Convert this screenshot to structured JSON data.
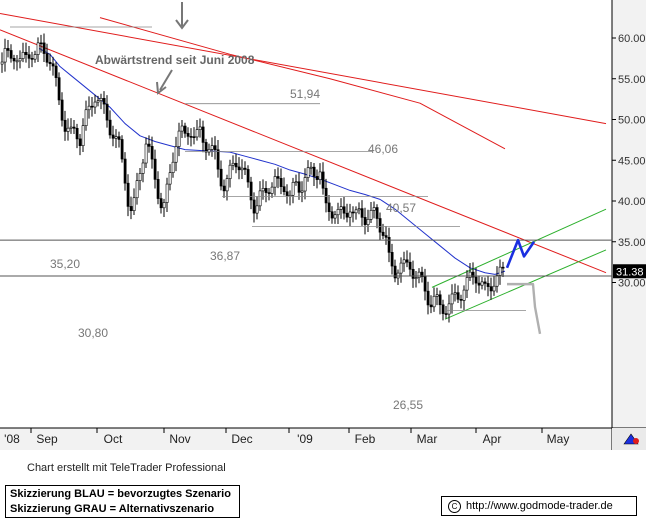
{
  "chart_data": {
    "type": "candlestick",
    "ylim": [
      23.5,
      64.5
    ],
    "y_ticks": [
      "30.00",
      "35.00",
      "40.00",
      "45.00",
      "50.00",
      "55.00",
      "60.00"
    ],
    "x_labels": [
      "'08",
      "Sep",
      "Oct",
      "Nov",
      "Dec",
      "'09",
      "Feb",
      "Mar",
      "Apr",
      "May"
    ],
    "last_price_label": "31.38",
    "last_price": 31.38,
    "annotation_trend": "Abwärtstrend seit Juni 2008",
    "level_labels": [
      {
        "text": "51,94",
        "value": 51.94
      },
      {
        "text": "46,06",
        "value": 46.06
      },
      {
        "text": "40,57",
        "value": 40.57
      },
      {
        "text": "36,87",
        "value": 36.87
      },
      {
        "text": "35,20",
        "value": 35.2
      },
      {
        "text": "30,80",
        "value": 30.8
      },
      {
        "text": "26,55",
        "value": 26.55
      }
    ],
    "price_path": [
      [
        0,
        56.8
      ],
      [
        5,
        58.0
      ],
      [
        10,
        57.5
      ],
      [
        15,
        58.2
      ],
      [
        20,
        57.0
      ],
      [
        25,
        57.6
      ],
      [
        30,
        58.4
      ],
      [
        35,
        57.8
      ],
      [
        40,
        59.0
      ],
      [
        45,
        58.5
      ],
      [
        50,
        57.0
      ],
      [
        55,
        55.0
      ],
      [
        60,
        52.0
      ],
      [
        65,
        49.0
      ],
      [
        70,
        48.0
      ],
      [
        75,
        49.0
      ],
      [
        80,
        47.5
      ],
      [
        85,
        50.0
      ],
      [
        90,
        51.5
      ],
      [
        95,
        53.0
      ],
      [
        100,
        52.0
      ],
      [
        105,
        51.0
      ],
      [
        110,
        49.0
      ],
      [
        115,
        47.5
      ],
      [
        120,
        46.5
      ],
      [
        125,
        43.0
      ],
      [
        128,
        40.0
      ],
      [
        131,
        38.5
      ],
      [
        134,
        39.5
      ],
      [
        138,
        43.0
      ],
      [
        142,
        45.0
      ],
      [
        146,
        47.0
      ],
      [
        150,
        45.5
      ],
      [
        155,
        43.0
      ],
      [
        160,
        40.0
      ],
      [
        163,
        38.5
      ],
      [
        166,
        40.5
      ],
      [
        170,
        43.5
      ],
      [
        175,
        47.0
      ],
      [
        180,
        48.5
      ],
      [
        185,
        48.0
      ],
      [
        190,
        49.0
      ],
      [
        195,
        47.5
      ],
      [
        200,
        48.5
      ],
      [
        205,
        47.0
      ],
      [
        210,
        46.5
      ],
      [
        215,
        45.5
      ],
      [
        220,
        43.0
      ],
      [
        225,
        41.5
      ],
      [
        230,
        43.5
      ],
      [
        235,
        45.0
      ],
      [
        240,
        44.5
      ],
      [
        245,
        43.0
      ],
      [
        250,
        41.0
      ],
      [
        255,
        39.0
      ],
      [
        260,
        40.5
      ],
      [
        265,
        41.0
      ],
      [
        270,
        42.0
      ],
      [
        275,
        42.5
      ],
      [
        280,
        41.5
      ],
      [
        285,
        42.0
      ],
      [
        290,
        40.5
      ],
      [
        295,
        42.0
      ],
      [
        300,
        41.5
      ],
      [
        305,
        43.0
      ],
      [
        310,
        43.5
      ],
      [
        315,
        43.2
      ],
      [
        320,
        44.0
      ],
      [
        325,
        39.0
      ],
      [
        330,
        38.5
      ],
      [
        335,
        39.0
      ],
      [
        340,
        38.5
      ],
      [
        345,
        38.0
      ],
      [
        350,
        39.5
      ],
      [
        355,
        38.0
      ],
      [
        360,
        38.5
      ],
      [
        365,
        38.0
      ],
      [
        370,
        38.2
      ],
      [
        375,
        38.4
      ],
      [
        380,
        37.0
      ],
      [
        385,
        36.0
      ],
      [
        390,
        32.0
      ],
      [
        395,
        31.2
      ],
      [
        400,
        32.5
      ],
      [
        405,
        31.8
      ],
      [
        410,
        32.0
      ],
      [
        415,
        31.0
      ],
      [
        420,
        30.5
      ],
      [
        425,
        29.0
      ],
      [
        430,
        27.5
      ],
      [
        435,
        28.0
      ],
      [
        440,
        27.0
      ],
      [
        445,
        26.8
      ],
      [
        450,
        27.4
      ],
      [
        455,
        28.2
      ],
      [
        460,
        28.5
      ],
      [
        465,
        29.5
      ],
      [
        470,
        30.5
      ],
      [
        475,
        31.0
      ],
      [
        480,
        30.0
      ],
      [
        485,
        29.0
      ],
      [
        490,
        29.5
      ],
      [
        495,
        30.5
      ],
      [
        500,
        31.0
      ],
      [
        504,
        31.4
      ]
    ],
    "moving_average": [
      [
        38,
        58.8
      ],
      [
        50,
        58.0
      ],
      [
        60,
        56.5
      ],
      [
        70,
        55.5
      ],
      [
        80,
        54.5
      ],
      [
        95,
        53.0
      ],
      [
        110,
        51.5
      ],
      [
        125,
        49.5
      ],
      [
        140,
        48.0
      ],
      [
        155,
        47.3
      ],
      [
        170,
        46.8
      ],
      [
        185,
        46.3
      ],
      [
        200,
        46.2
      ],
      [
        215,
        46.1
      ],
      [
        230,
        46.0
      ],
      [
        245,
        45.5
      ],
      [
        260,
        45.0
      ],
      [
        275,
        44.5
      ],
      [
        290,
        43.8
      ],
      [
        305,
        43.3
      ],
      [
        320,
        42.7
      ],
      [
        335,
        42.0
      ],
      [
        350,
        41.3
      ],
      [
        365,
        40.8
      ],
      [
        380,
        40.2
      ],
      [
        395,
        39.0
      ],
      [
        410,
        37.5
      ],
      [
        425,
        36.0
      ],
      [
        440,
        34.5
      ],
      [
        455,
        33.0
      ],
      [
        470,
        31.8
      ],
      [
        485,
        31.2
      ],
      [
        495,
        31.0
      ],
      [
        505,
        31.4
      ]
    ],
    "trend_lines": [
      {
        "color": "#e01c1c",
        "points": [
          [
            0,
            61.0
          ],
          [
            606,
            31.2
          ]
        ]
      },
      {
        "color": "#e01c1c",
        "points": [
          [
            0,
            63.0
          ],
          [
            606,
            49.5
          ]
        ]
      },
      {
        "color": "#e01c1c",
        "points": [
          [
            100,
            62.5
          ],
          [
            230,
            58.0
          ],
          [
            330,
            55.0
          ],
          [
            420,
            52.0
          ],
          [
            505,
            46.4
          ]
        ]
      },
      {
        "color": "#2db02d",
        "points": [
          [
            432,
            29.4
          ],
          [
            606,
            39.0
          ]
        ]
      },
      {
        "color": "#2db02d",
        "points": [
          [
            445,
            25.5
          ],
          [
            606,
            34.0
          ]
        ]
      }
    ],
    "scenario_blue": [
      [
        507,
        31.8
      ],
      [
        518,
        35.2
      ],
      [
        524,
        33.2
      ],
      [
        534,
        35.0
      ]
    ],
    "scenario_grey": [
      [
        507,
        29.8
      ],
      [
        533,
        29.8
      ],
      [
        535,
        27.0
      ],
      [
        540,
        23.7
      ]
    ],
    "credit_text": "Chart erstellt mit TeleTrader Professional",
    "legend_lines": [
      "Skizzierung BLAU = bevorzugtes Szenario",
      "Skizzierung GRAU = Alternativszenario"
    ],
    "website": "http://www.godmode-trader.de",
    "colors": {
      "trend": "#e01c1c",
      "channel": "#2db02d",
      "average": "#2233cc",
      "scenario_blue": "#1a2fe0",
      "scenario_grey": "#b0b0b0",
      "axis_bg": "#f2f2f2",
      "label_grey": "#777777"
    }
  }
}
